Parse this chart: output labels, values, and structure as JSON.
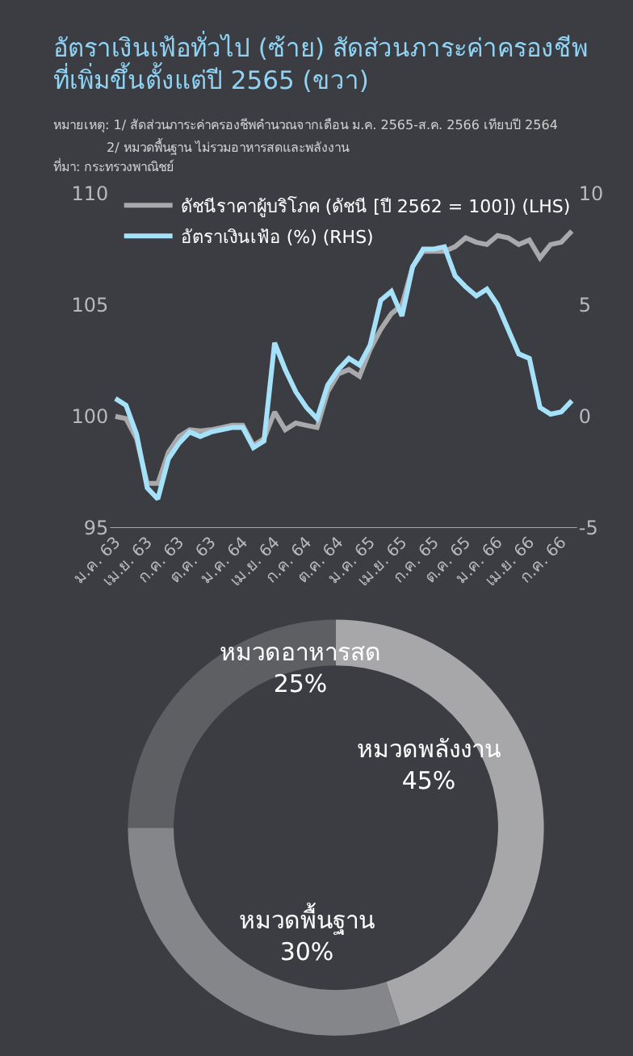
{
  "chart_data": [
    {
      "type": "line",
      "title": "อัตราเงินเฟ้อทั่วไป (ซ้าย) สัดส่วนภาระค่าครองชีพ\nที่เพิ่มขึ้นตั้งแต่ปี 2565 (ขวา)",
      "annotations": [
        "หมายเหตุ: 1/ สัดส่วนภาระค่าครองชีพคำนวณจากเดือน ม.ค. 2565-ส.ค. 2566 เทียบปี 2564",
        "2/ หมวดพื้นฐาน ไม่รวมอาหารสดและพลังงาน",
        "ที่มา: กระทรวงพาณิชย์"
      ],
      "categories": [
        "ม.ค. 63",
        null,
        null,
        "เม.ย. 63",
        null,
        null,
        "ก.ค. 63",
        null,
        null,
        "ต.ค. 63",
        null,
        null,
        "ม.ค. 64",
        null,
        null,
        "เม.ย. 64",
        null,
        null,
        "ก.ค. 64",
        null,
        null,
        "ต.ค. 64",
        null,
        null,
        "ม.ค. 65",
        null,
        null,
        "เม.ย. 65",
        null,
        null,
        "ก.ค. 65",
        null,
        null,
        "ต.ค. 65",
        null,
        null,
        "ม.ค. 66",
        null,
        null,
        "เม.ย. 66",
        null,
        null,
        "ก.ค. 66",
        null
      ],
      "series": [
        {
          "name": "ดัชนีราคาผู้บริโภค (ดัชนี [ปี 2562 = 100]) (LHS)",
          "color": "#a9a9ab",
          "values": [
            100.0,
            99.9,
            99.0,
            97.0,
            97.0,
            98.4,
            99.1,
            99.4,
            99.35,
            99.4,
            99.5,
            99.6,
            99.6,
            98.7,
            99.0,
            100.2,
            99.4,
            99.7,
            99.6,
            99.5,
            101.1,
            101.9,
            102.1,
            101.8,
            103.0,
            103.9,
            104.6,
            105.0,
            106.7,
            107.4,
            107.4,
            107.4,
            107.6,
            108.0,
            107.8,
            107.7,
            108.1,
            108.0,
            107.7,
            107.9,
            107.1,
            107.7,
            107.8,
            108.3
          ]
        },
        {
          "name": "อัตราเงินเฟ้อ (%) (RHS)",
          "color": "#a6e1fa",
          "axis": "y2",
          "values": [
            0.8,
            0.5,
            -0.8,
            -3.2,
            -3.7,
            -1.9,
            -1.2,
            -0.7,
            -0.9,
            -0.7,
            -0.6,
            -0.5,
            -0.5,
            -1.4,
            -1.1,
            3.3,
            2.1,
            1.1,
            0.4,
            -0.1,
            1.4,
            2.1,
            2.6,
            2.3,
            3.2,
            5.2,
            5.6,
            4.5,
            6.7,
            7.5,
            7.5,
            7.6,
            6.3,
            5.8,
            5.4,
            5.7,
            5.0,
            3.9,
            2.8,
            2.6,
            0.4,
            0.1,
            0.2,
            0.7
          ]
        }
      ],
      "ylim": [
        95,
        110
      ],
      "yticks": [
        95,
        100,
        105,
        110
      ],
      "y2lim": [
        -5,
        10
      ],
      "y2ticks": [
        -5,
        0,
        5,
        10
      ],
      "legend": "top left"
    },
    {
      "type": "donut",
      "categories": [
        "หมวดพลังงาน",
        "หมวดพื้นฐาน",
        "หมวดอาหารสด"
      ],
      "values": [
        45,
        30,
        25
      ],
      "colors": [
        "#a7a7a9",
        "#858689",
        "#5e5f63"
      ],
      "value_labels": [
        "45%",
        "30%",
        "25%"
      ]
    }
  ]
}
